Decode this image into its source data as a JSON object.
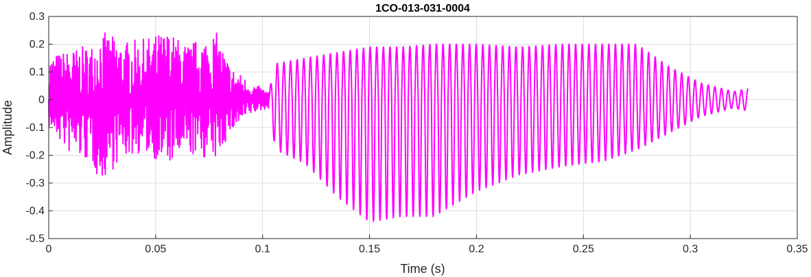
{
  "chart_data": {
    "type": "line",
    "title": "1CO-013-031-0004",
    "xlabel": "Time (s)",
    "ylabel": "Amplitude",
    "xlim": [
      0,
      0.35
    ],
    "ylim": [
      -0.5,
      0.3
    ],
    "grid": true,
    "x_ticks": [
      0,
      0.05,
      0.1,
      0.15,
      0.2,
      0.25,
      0.3,
      0.35
    ],
    "x_tick_labels": [
      "0",
      "0.05",
      "0.1",
      "0.15",
      "0.2",
      "0.25",
      "0.3",
      "0.35"
    ],
    "y_ticks": [
      0.3,
      0.2,
      0.1,
      0,
      -0.1,
      -0.2,
      -0.3,
      -0.4,
      -0.5
    ],
    "y_tick_labels": [
      "0.3",
      "0.2",
      "0.1",
      "0",
      "-0.1",
      "-0.2",
      "-0.3",
      "-0.4",
      "-0.5"
    ],
    "series": [
      {
        "color": "#ff00ff",
        "x_end": 0.327,
        "noise_segment": [
          {
            "t": 0.0,
            "hi": 0.16,
            "lo": -0.1
          },
          {
            "t": 0.01,
            "hi": 0.18,
            "lo": -0.2
          },
          {
            "t": 0.02,
            "hi": 0.2,
            "lo": -0.23
          },
          {
            "t": 0.024,
            "hi": 0.25,
            "lo": -0.3
          },
          {
            "t": 0.035,
            "hi": 0.21,
            "lo": -0.21
          },
          {
            "t": 0.045,
            "hi": 0.22,
            "lo": -0.19
          },
          {
            "t": 0.055,
            "hi": 0.25,
            "lo": -0.24
          },
          {
            "t": 0.065,
            "hi": 0.2,
            "lo": -0.2
          },
          {
            "t": 0.078,
            "hi": 0.25,
            "lo": -0.22
          },
          {
            "t": 0.085,
            "hi": 0.12,
            "lo": -0.12
          },
          {
            "t": 0.095,
            "hi": 0.06,
            "lo": -0.05
          },
          {
            "t": 0.103,
            "hi": 0.03,
            "lo": -0.03
          }
        ],
        "oscillation_envelope": [
          {
            "t": 0.103,
            "hi": 0.03,
            "lo": -0.03
          },
          {
            "t": 0.106,
            "hi": 0.13,
            "lo": -0.18
          },
          {
            "t": 0.12,
            "hi": 0.15,
            "lo": -0.23
          },
          {
            "t": 0.135,
            "hi": 0.17,
            "lo": -0.35
          },
          {
            "t": 0.15,
            "hi": 0.19,
            "lo": -0.44
          },
          {
            "t": 0.165,
            "hi": 0.19,
            "lo": -0.42
          },
          {
            "t": 0.18,
            "hi": 0.2,
            "lo": -0.42
          },
          {
            "t": 0.2,
            "hi": 0.2,
            "lo": -0.33
          },
          {
            "t": 0.22,
            "hi": 0.19,
            "lo": -0.27
          },
          {
            "t": 0.24,
            "hi": 0.2,
            "lo": -0.24
          },
          {
            "t": 0.26,
            "hi": 0.2,
            "lo": -0.22
          },
          {
            "t": 0.275,
            "hi": 0.2,
            "lo": -0.18
          },
          {
            "t": 0.29,
            "hi": 0.12,
            "lo": -0.12
          },
          {
            "t": 0.305,
            "hi": 0.06,
            "lo": -0.06
          },
          {
            "t": 0.32,
            "hi": 0.03,
            "lo": -0.03
          },
          {
            "t": 0.327,
            "hi": 0.04,
            "lo": -0.04
          }
        ],
        "oscillation_period_s": 0.0031
      }
    ]
  }
}
